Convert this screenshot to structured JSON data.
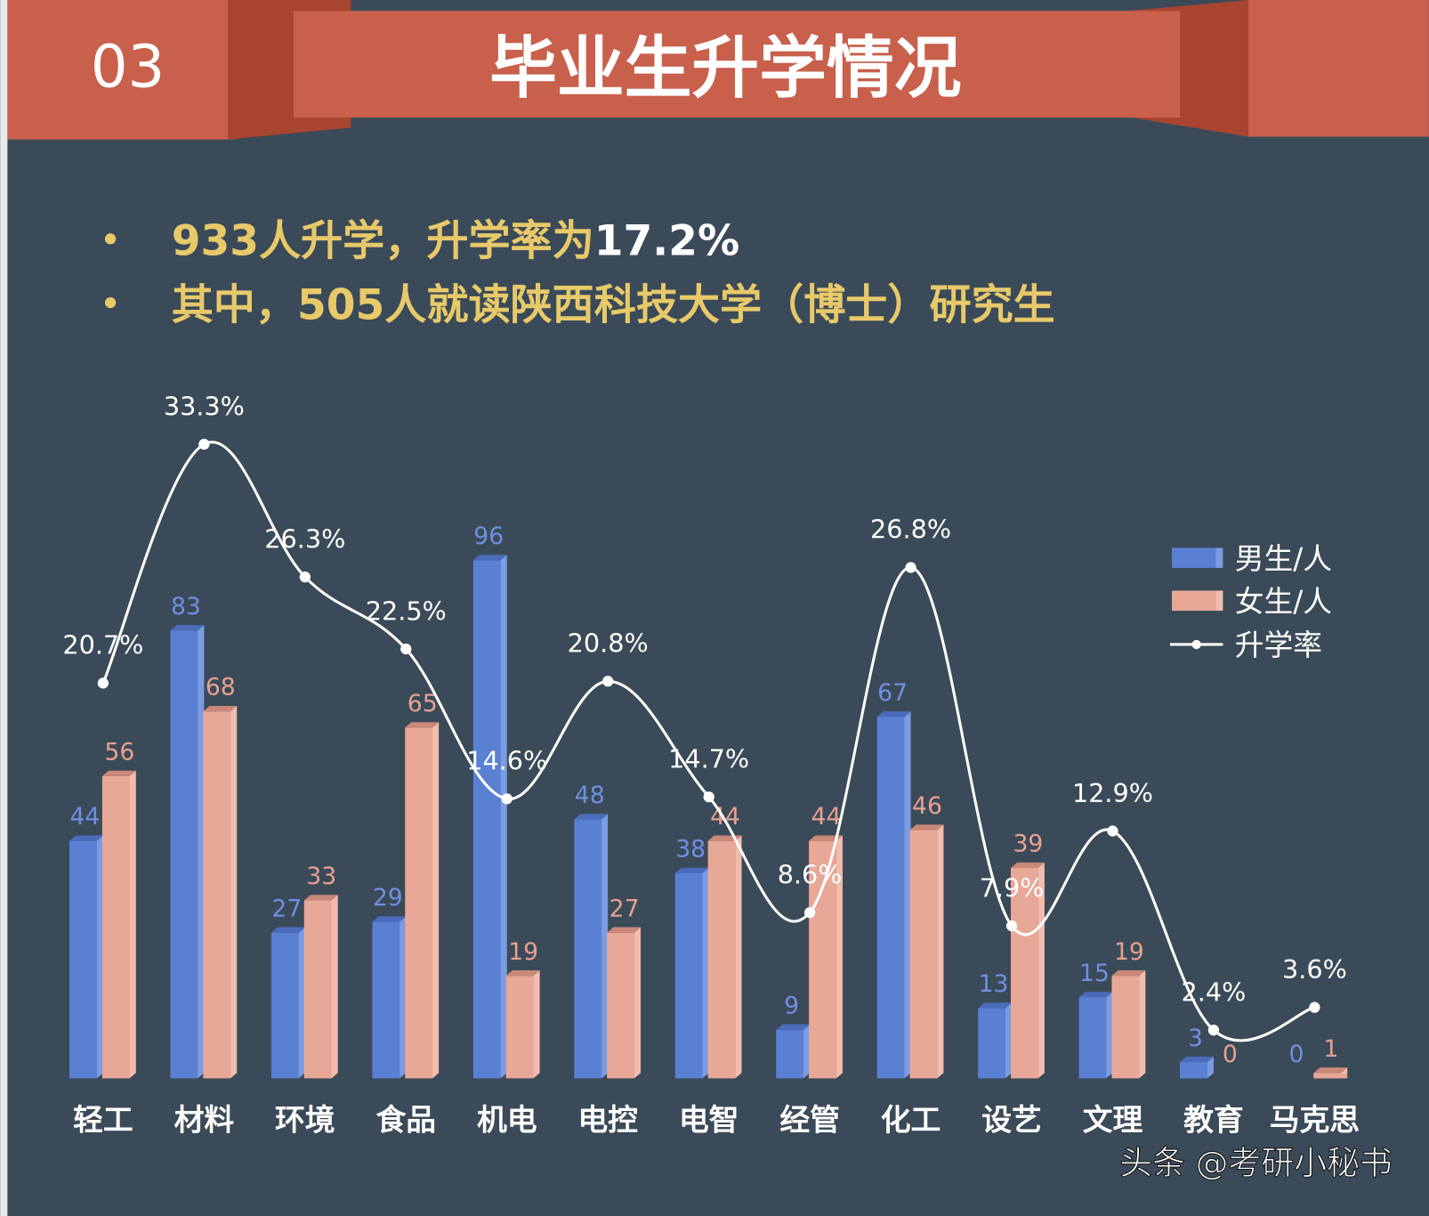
{
  "header": {
    "section_number": "03",
    "title": "毕业生升学情况",
    "banner_color": "#c8604c"
  },
  "bullets": [
    {
      "text": "933人升学，升学率为",
      "highlight": "17.2%"
    },
    {
      "text": "其中，505人就读陕西科技大学（博士）研究生",
      "highlight": ""
    }
  ],
  "watermark": "头条 @考研小秘书",
  "chart_data": {
    "type": "bar+line",
    "categories": [
      "轻工",
      "材料",
      "环境",
      "食品",
      "机电",
      "电控",
      "电智",
      "经管",
      "化工",
      "设艺",
      "文理",
      "教育",
      "马克思"
    ],
    "series": [
      {
        "name": "男生/人",
        "type": "bar",
        "color": "#5a80d3",
        "label_color": "#6f8fe0",
        "values": [
          44,
          83,
          27,
          29,
          96,
          48,
          38,
          9,
          67,
          13,
          15,
          3,
          0
        ]
      },
      {
        "name": "女生/人",
        "type": "bar",
        "color": "#e8a898",
        "label_color": "#e8a090",
        "values": [
          56,
          68,
          33,
          65,
          19,
          27,
          44,
          44,
          46,
          39,
          19,
          0,
          1
        ]
      },
      {
        "name": "升学率",
        "type": "line",
        "color": "#ffffff",
        "unit": "%",
        "values": [
          20.7,
          33.3,
          26.3,
          22.5,
          14.6,
          20.8,
          14.7,
          8.6,
          26.8,
          7.9,
          12.9,
          2.4,
          3.6
        ],
        "labels": [
          "20.7%",
          "33.3%",
          "26.3%",
          "22.5%",
          "14.6%",
          "20.8%",
          "14.7%",
          "8.6%",
          "26.8%",
          "7.9%",
          "12.9%",
          "2.4%",
          "3.6%"
        ]
      }
    ],
    "legend_position": "right",
    "grid": false
  }
}
